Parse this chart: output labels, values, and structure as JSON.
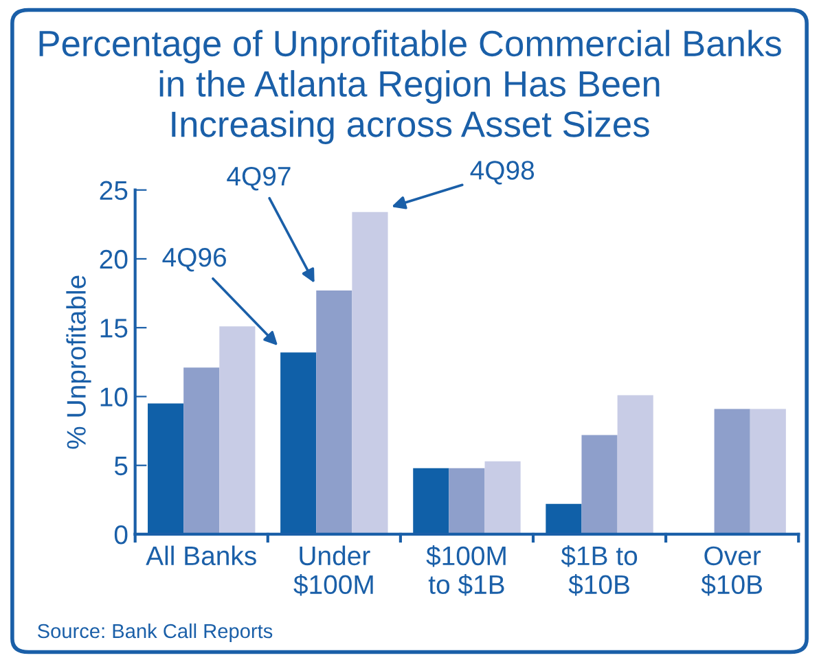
{
  "chart_data": {
    "type": "bar",
    "title": "Percentage of Unprofitable Commercial Banks\nin the Atlanta Region Has Been\nIncreasing across Asset Sizes",
    "ylabel": "% Unprofitable",
    "categories": [
      "All Banks",
      "Under\n$100M",
      "$100M\nto $1B",
      "$1B to\n$10B",
      "Over\n$10B"
    ],
    "series": [
      {
        "name": "4Q96",
        "color": "#1060a8",
        "values": [
          9.5,
          13.2,
          4.8,
          2.2,
          null
        ]
      },
      {
        "name": "4Q97",
        "color": "#8e9fcb",
        "values": [
          12.1,
          17.7,
          4.8,
          7.2,
          9.1
        ]
      },
      {
        "name": "4Q98",
        "color": "#c8cce6",
        "values": [
          15.1,
          23.4,
          5.3,
          10.1,
          9.1
        ]
      }
    ],
    "ylim": [
      0,
      25
    ],
    "yticks": [
      0,
      5,
      10,
      15,
      20,
      25
    ],
    "grid": false,
    "legend": false,
    "annotations": [
      "Source: Bank Call Reports"
    ]
  }
}
